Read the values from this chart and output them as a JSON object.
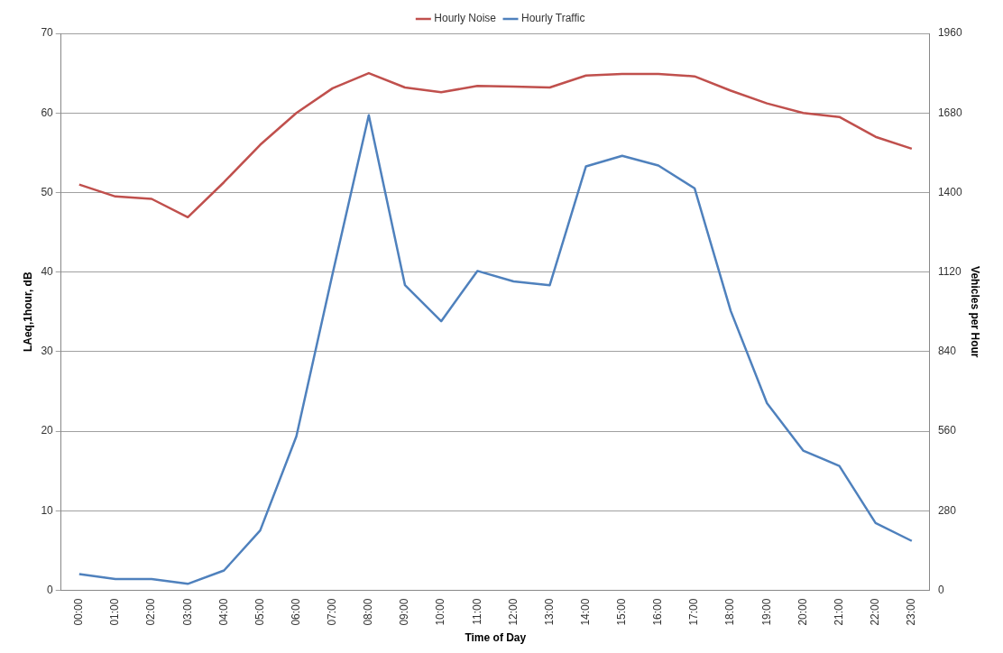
{
  "chart_data": {
    "type": "line",
    "xlabel": "Time of Day",
    "ylabel": "LAeq,1hour, dB",
    "y2label": "Vehicles per Hour",
    "categories": [
      "00:00",
      "01:00",
      "02:00",
      "03:00",
      "04:00",
      "05:00",
      "06:00",
      "07:00",
      "08:00",
      "09:00",
      "10:00",
      "11:00",
      "12:00",
      "13:00",
      "14:00",
      "15:00",
      "16:00",
      "17:00",
      "18:00",
      "19:00",
      "20:00",
      "21:00",
      "22:00",
      "23:00"
    ],
    "series": [
      {
        "name": "Hourly Noise",
        "color": "#c0504d",
        "values": [
          51.0,
          49.5,
          49.2,
          46.9,
          51.3,
          56.0,
          60.0,
          63.1,
          65.0,
          63.2,
          62.6,
          63.4,
          63.3,
          63.2,
          64.7,
          64.9,
          64.9,
          64.6,
          62.8,
          61.2,
          60.0,
          59.5,
          57.0,
          55.5
        ]
      },
      {
        "name": "Hourly Traffic",
        "color": "#4f81bd",
        "axis": "y2",
        "values": [
          57,
          40,
          40,
          23,
          70,
          211,
          542,
          1114,
          1672,
          1074,
          947,
          1124,
          1087,
          1074,
          1492,
          1529,
          1495,
          1415,
          983,
          659,
          492,
          438,
          237,
          174
        ]
      }
    ],
    "ylim": [
      0,
      70
    ],
    "yticks": [
      0,
      10,
      20,
      30,
      40,
      50,
      60,
      70
    ],
    "y2lim": [
      0,
      1960
    ],
    "y2ticks": [
      0,
      280,
      560,
      840,
      1120,
      1400,
      1680,
      1960
    ],
    "grid": "y",
    "legend": "top",
    "marker": "none",
    "line_style": "solid"
  }
}
